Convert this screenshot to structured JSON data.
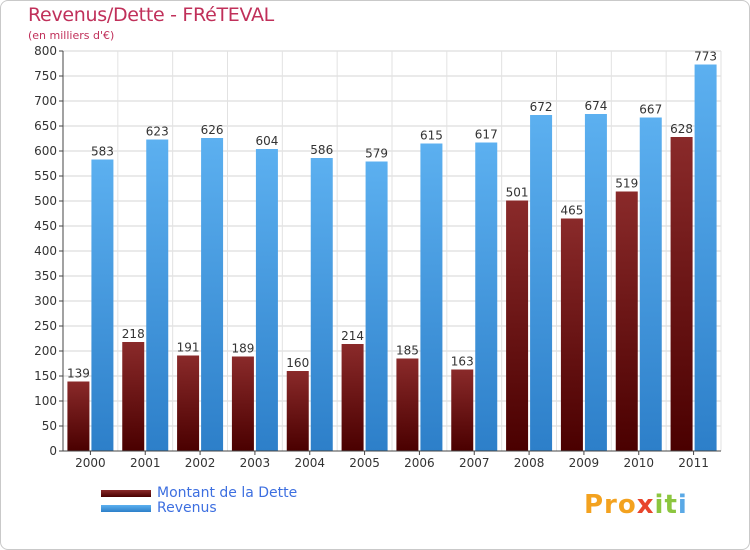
{
  "title": "Revenus/Dette - FRéTEVAL",
  "subtitle": "(en milliers d'€)",
  "chart_data": {
    "type": "bar",
    "categories": [
      "2000",
      "2001",
      "2002",
      "2003",
      "2004",
      "2005",
      "2006",
      "2007",
      "2008",
      "2009",
      "2010",
      "2011"
    ],
    "series": [
      {
        "name": "Montant de la Dette",
        "color": "#7a1a1a",
        "values": [
          139,
          218,
          191,
          189,
          160,
          214,
          185,
          163,
          501,
          465,
          519,
          628
        ]
      },
      {
        "name": "Revenus",
        "color": "#4a9de6",
        "values": [
          583,
          623,
          626,
          604,
          586,
          579,
          615,
          617,
          672,
          674,
          667,
          773
        ]
      }
    ],
    "ylim": [
      0,
      800
    ],
    "yticks": [
      0,
      50,
      100,
      150,
      200,
      250,
      300,
      350,
      400,
      450,
      500,
      550,
      600,
      650,
      700,
      750,
      800
    ],
    "grid": true,
    "legend_position": "bottom-left"
  },
  "legend": {
    "debt_label": "Montant de la Dette",
    "revenue_label": "Revenus"
  },
  "logo": {
    "part1": "Pro",
    "part2": "x",
    "part3": "it",
    "part4": "i"
  }
}
